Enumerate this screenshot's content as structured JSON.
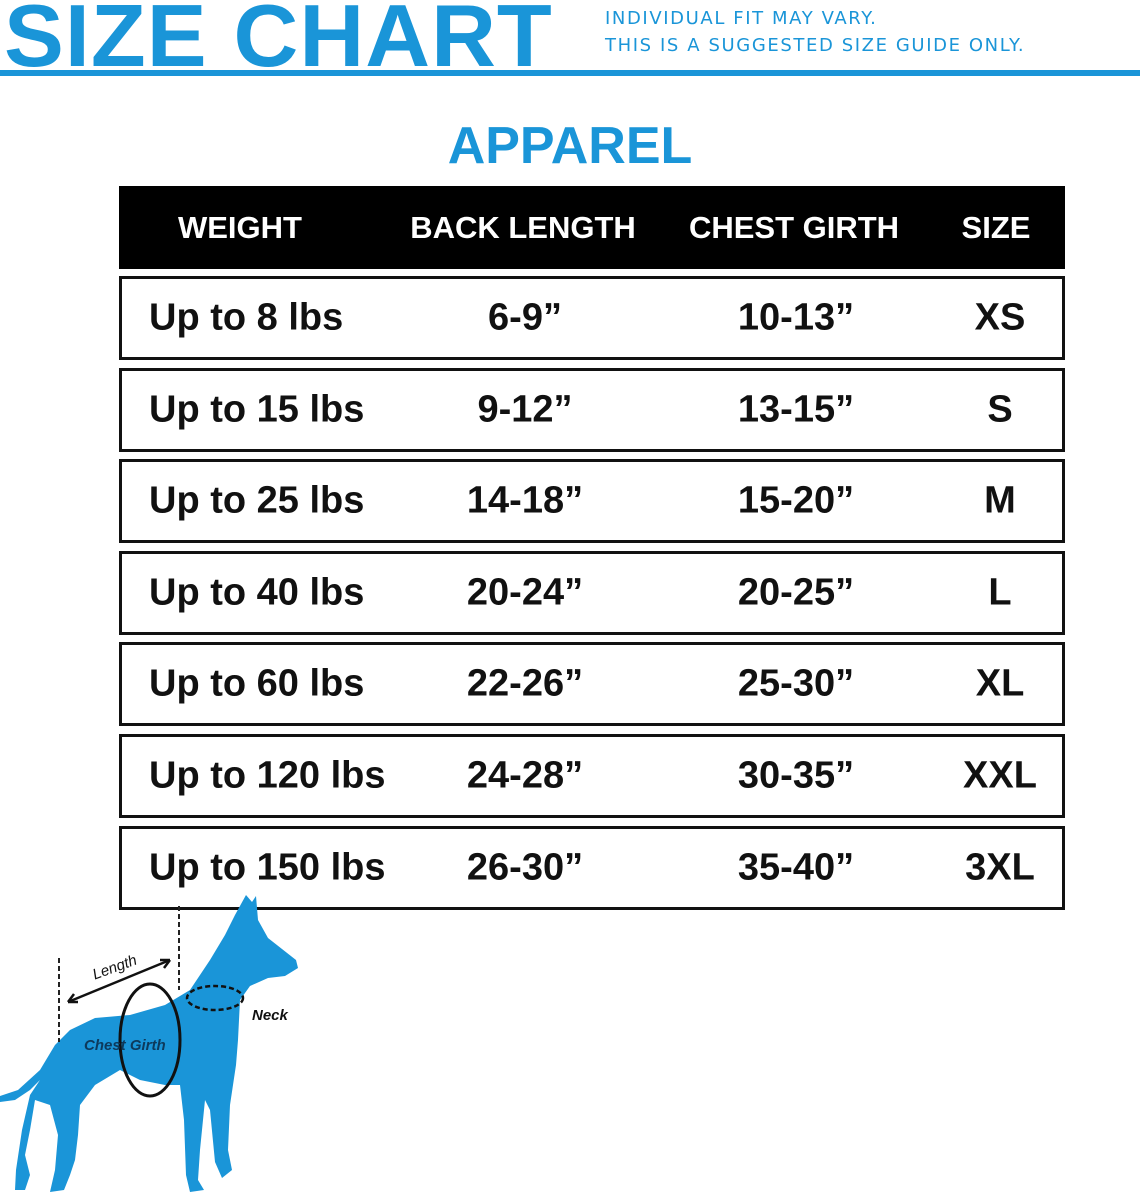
{
  "header": {
    "title": "SIZE CHART",
    "note_line1": "INDIVIDUAL FIT MAY VARY.",
    "note_line2": "THIS IS A SUGGESTED SIZE GUIDE ONLY.",
    "accent_color": "#1a95d8"
  },
  "section_title": "APPAREL",
  "table": {
    "columns": [
      "WEIGHT",
      "BACK LENGTH",
      "CHEST GIRTH",
      "SIZE"
    ],
    "rows": [
      [
        "Up to 8 lbs",
        "6-9”",
        "10-13”",
        "XS"
      ],
      [
        "Up to 15 lbs",
        "9-12”",
        "13-15”",
        "S"
      ],
      [
        "Up to 25 lbs",
        "14-18”",
        "15-20”",
        "M"
      ],
      [
        "Up to 40 lbs",
        "20-24”",
        "20-25”",
        "L"
      ],
      [
        "Up to 60 lbs",
        "22-26”",
        "25-30”",
        "XL"
      ],
      [
        "Up to 120 lbs",
        "24-28”",
        "30-35”",
        "XXL"
      ],
      [
        "Up to 150 lbs",
        "26-30”",
        "35-40”",
        "3XL"
      ]
    ]
  },
  "diagram": {
    "length_label": "Length",
    "chest_label": "Chest Girth",
    "neck_label": "Neck"
  }
}
